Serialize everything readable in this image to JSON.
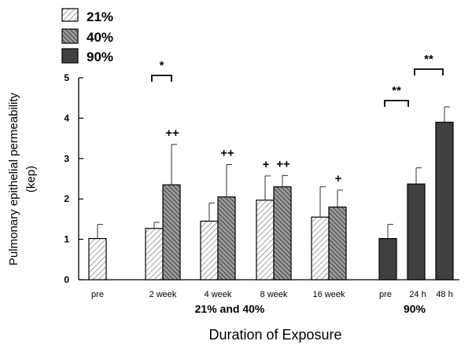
{
  "chart_data": {
    "type": "bar",
    "ylabel_line1": "Pulmonary epithelial permeability",
    "ylabel_line2": "(kep)",
    "xlabel": "Duration of Exposure",
    "ylim": [
      0,
      5
    ],
    "yticks": [
      "0",
      "1",
      "2",
      "3",
      "4",
      "5"
    ],
    "legend": [
      {
        "name": "21%",
        "pattern": "light-hatch"
      },
      {
        "name": "40%",
        "pattern": "dark-hatch"
      },
      {
        "name": "90%",
        "pattern": "solid"
      }
    ],
    "groups": [
      {
        "label": "pre",
        "bars": [
          {
            "series": "21%",
            "value": 1.02,
            "error": 0.35
          }
        ]
      },
      {
        "label": "2 week",
        "bars": [
          {
            "series": "21%",
            "value": 1.27,
            "error": 0.15
          },
          {
            "series": "40%",
            "value": 2.35,
            "error": 1.0,
            "mark": "++"
          }
        ]
      },
      {
        "label": "4 week",
        "bars": [
          {
            "series": "21%",
            "value": 1.45,
            "error": 0.45
          },
          {
            "series": "40%",
            "value": 2.05,
            "error": 0.8,
            "mark": "++"
          }
        ]
      },
      {
        "label": "8 week",
        "bars": [
          {
            "series": "21%",
            "value": 1.97,
            "error": 0.6,
            "mark": "+"
          },
          {
            "series": "40%",
            "value": 2.3,
            "error": 0.28,
            "mark": "++"
          }
        ]
      },
      {
        "label": "16 week",
        "bars": [
          {
            "series": "21%",
            "value": 1.55,
            "error": 0.75
          },
          {
            "series": "40%",
            "value": 1.8,
            "error": 0.42,
            "mark": "+"
          }
        ]
      },
      {
        "label": "pre",
        "bars": [
          {
            "series": "90%",
            "value": 1.02,
            "error": 0.35
          }
        ]
      },
      {
        "label": "24 h",
        "bars": [
          {
            "series": "90%",
            "value": 2.37,
            "error": 0.4
          }
        ]
      },
      {
        "label": "48 h",
        "bars": [
          {
            "series": "90%",
            "value": 3.9,
            "error": 0.38
          }
        ]
      }
    ],
    "sections": [
      {
        "label": "21% and 40%"
      },
      {
        "label": "90%"
      }
    ],
    "significance": [
      {
        "label": "*",
        "from_group": 1,
        "to_group": 1
      },
      {
        "label": "**",
        "from_group": 5,
        "to_group": 6
      },
      {
        "label": "**",
        "from_group": 6,
        "to_group": 7
      }
    ]
  }
}
